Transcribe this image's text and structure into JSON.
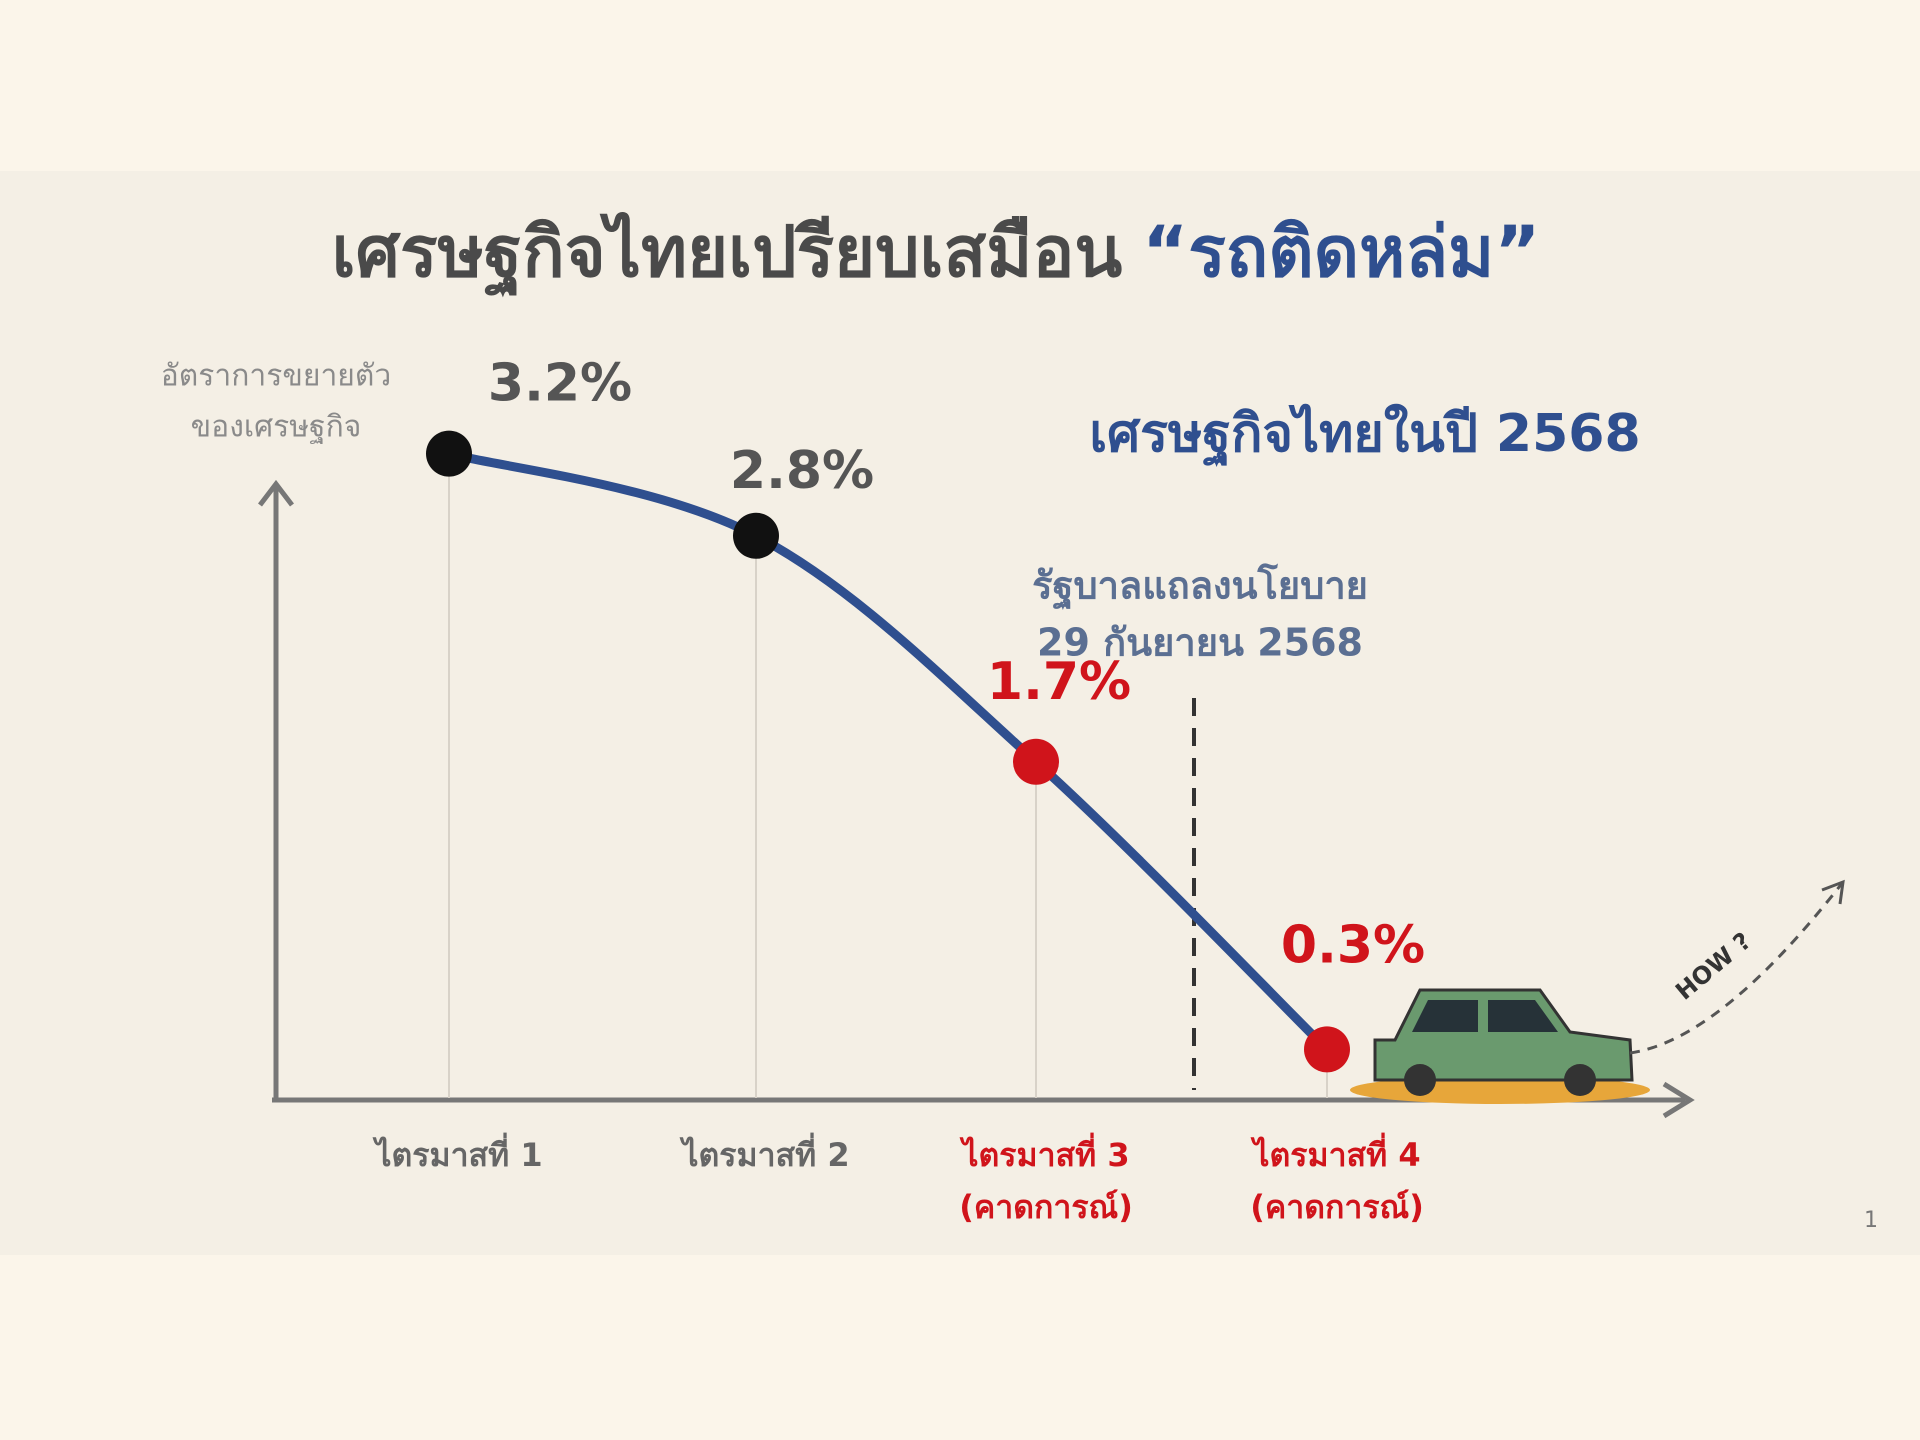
{
  "chart_data": {
    "type": "line",
    "title": "เศรษฐกิจไทยเปรียบเสมือน",
    "title_highlight": "“รถติดหล่ม”",
    "subtitle": "เศรษฐกิจไทยในปี 2568",
    "y_label": [
      "อัตราการขยายตัว",
      "ของเศรษฐกิจ"
    ],
    "annotation": [
      "รัฐบาลแถลงนโยบาย",
      "29 กันยายน 2568"
    ],
    "categories": [
      "ไตรมาสที่ 1",
      "ไตรมาสที่ 2",
      "ไตรมาสที่ 3",
      "ไตรมาสที่ 4"
    ],
    "category_notes": [
      null,
      null,
      "(คาดการณ์)",
      "(คาดการณ์)"
    ],
    "values": [
      3.2,
      2.8,
      1.7,
      0.3
    ],
    "value_labels": [
      "3.2%",
      "2.8%",
      "1.7%",
      "0.3%"
    ],
    "point_colors": [
      "#111111",
      "#111111",
      "#d0141b",
      "#d0141b"
    ],
    "line_color": "#2f4f8f",
    "ylim": [
      0,
      3.5
    ],
    "car_note": "HOW ?",
    "page_number": "1"
  }
}
